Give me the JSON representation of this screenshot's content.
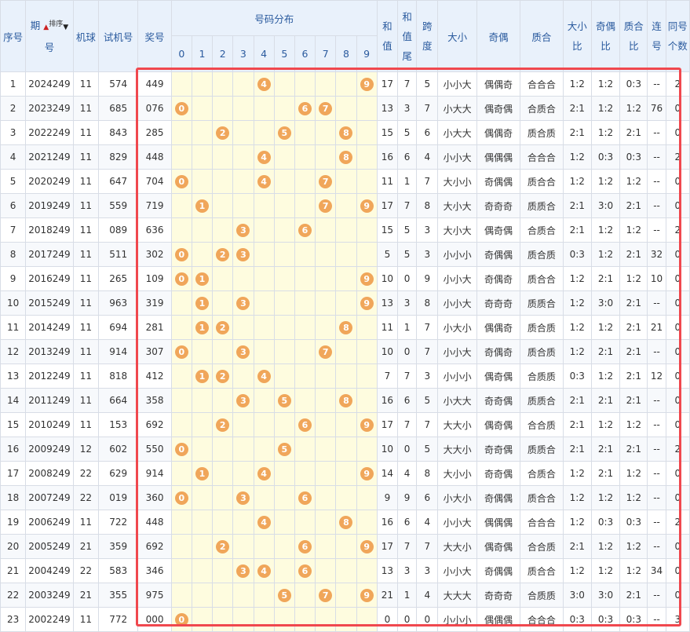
{
  "headers": {
    "seq": "序号",
    "period_a": "期",
    "period_b": "号",
    "sort_label": "排序",
    "machine": "机球",
    "trial": "试机号",
    "prize": "奖号",
    "dist": "号码分布",
    "digits": [
      "0",
      "1",
      "2",
      "3",
      "4",
      "5",
      "6",
      "7",
      "8",
      "9"
    ],
    "sum_a": "和",
    "sum_b": "值",
    "tail_a": "和",
    "tail_b": "值",
    "tail_c": "尾",
    "span_a": "跨",
    "span_b": "度",
    "size": "大小",
    "parity": "奇偶",
    "prime": "质合",
    "size_ratio_a": "大小",
    "size_ratio_b": "比",
    "parity_ratio_a": "奇偶",
    "parity_ratio_b": "比",
    "prime_ratio_a": "质合",
    "prime_ratio_b": "比",
    "consec_a": "连",
    "consec_b": "号",
    "same_a": "同号",
    "same_b": "个数"
  },
  "rows": [
    {
      "seq": "1",
      "period": "2024249",
      "machine": "11",
      "trial": "574",
      "prize": "449",
      "sum": "17",
      "tail": "7",
      "span": "5",
      "size": "小小大",
      "parity": "偶偶奇",
      "prime": "合合合",
      "size_ratio": "1:2",
      "parity_ratio": "1:2",
      "prime_ratio": "0:3",
      "consec": "--",
      "same": "2"
    },
    {
      "seq": "2",
      "period": "2023249",
      "machine": "11",
      "trial": "685",
      "prize": "076",
      "sum": "13",
      "tail": "3",
      "span": "7",
      "size": "小大大",
      "parity": "偶奇偶",
      "prime": "合质合",
      "size_ratio": "2:1",
      "parity_ratio": "1:2",
      "prime_ratio": "1:2",
      "consec": "76",
      "same": "0"
    },
    {
      "seq": "3",
      "period": "2022249",
      "machine": "11",
      "trial": "843",
      "prize": "285",
      "sum": "15",
      "tail": "5",
      "span": "6",
      "size": "小大大",
      "parity": "偶偶奇",
      "prime": "质合质",
      "size_ratio": "2:1",
      "parity_ratio": "1:2",
      "prime_ratio": "2:1",
      "consec": "--",
      "same": "0"
    },
    {
      "seq": "4",
      "period": "2021249",
      "machine": "11",
      "trial": "829",
      "prize": "448",
      "sum": "16",
      "tail": "6",
      "span": "4",
      "size": "小小大",
      "parity": "偶偶偶",
      "prime": "合合合",
      "size_ratio": "1:2",
      "parity_ratio": "0:3",
      "prime_ratio": "0:3",
      "consec": "--",
      "same": "2"
    },
    {
      "seq": "5",
      "period": "2020249",
      "machine": "11",
      "trial": "647",
      "prize": "704",
      "sum": "11",
      "tail": "1",
      "span": "7",
      "size": "大小小",
      "parity": "奇偶偶",
      "prime": "质合合",
      "size_ratio": "1:2",
      "parity_ratio": "1:2",
      "prime_ratio": "1:2",
      "consec": "--",
      "same": "0"
    },
    {
      "seq": "6",
      "period": "2019249",
      "machine": "11",
      "trial": "559",
      "prize": "719",
      "sum": "17",
      "tail": "7",
      "span": "8",
      "size": "大小大",
      "parity": "奇奇奇",
      "prime": "质质合",
      "size_ratio": "2:1",
      "parity_ratio": "3:0",
      "prime_ratio": "2:1",
      "consec": "--",
      "same": "0"
    },
    {
      "seq": "7",
      "period": "2018249",
      "machine": "11",
      "trial": "089",
      "prize": "636",
      "sum": "15",
      "tail": "5",
      "span": "3",
      "size": "大小大",
      "parity": "偶奇偶",
      "prime": "合质合",
      "size_ratio": "2:1",
      "parity_ratio": "1:2",
      "prime_ratio": "1:2",
      "consec": "--",
      "same": "2"
    },
    {
      "seq": "8",
      "period": "2017249",
      "machine": "11",
      "trial": "511",
      "prize": "302",
      "sum": "5",
      "tail": "5",
      "span": "3",
      "size": "小小小",
      "parity": "奇偶偶",
      "prime": "质合质",
      "size_ratio": "0:3",
      "parity_ratio": "1:2",
      "prime_ratio": "2:1",
      "consec": "32",
      "same": "0"
    },
    {
      "seq": "9",
      "period": "2016249",
      "machine": "11",
      "trial": "265",
      "prize": "109",
      "sum": "10",
      "tail": "0",
      "span": "9",
      "size": "小小大",
      "parity": "奇偶奇",
      "prime": "质合合",
      "size_ratio": "1:2",
      "parity_ratio": "2:1",
      "prime_ratio": "1:2",
      "consec": "10",
      "same": "0"
    },
    {
      "seq": "10",
      "period": "2015249",
      "machine": "11",
      "trial": "963",
      "prize": "319",
      "sum": "13",
      "tail": "3",
      "span": "8",
      "size": "小小大",
      "parity": "奇奇奇",
      "prime": "质质合",
      "size_ratio": "1:2",
      "parity_ratio": "3:0",
      "prime_ratio": "2:1",
      "consec": "--",
      "same": "0"
    },
    {
      "seq": "11",
      "period": "2014249",
      "machine": "11",
      "trial": "694",
      "prize": "281",
      "sum": "11",
      "tail": "1",
      "span": "7",
      "size": "小大小",
      "parity": "偶偶奇",
      "prime": "质合质",
      "size_ratio": "1:2",
      "parity_ratio": "1:2",
      "prime_ratio": "2:1",
      "consec": "21",
      "same": "0"
    },
    {
      "seq": "12",
      "period": "2013249",
      "machine": "11",
      "trial": "914",
      "prize": "307",
      "sum": "10",
      "tail": "0",
      "span": "7",
      "size": "小小大",
      "parity": "奇偶奇",
      "prime": "质合质",
      "size_ratio": "1:2",
      "parity_ratio": "2:1",
      "prime_ratio": "2:1",
      "consec": "--",
      "same": "0"
    },
    {
      "seq": "13",
      "period": "2012249",
      "machine": "11",
      "trial": "818",
      "prize": "412",
      "sum": "7",
      "tail": "7",
      "span": "3",
      "size": "小小小",
      "parity": "偶奇偶",
      "prime": "合质质",
      "size_ratio": "0:3",
      "parity_ratio": "1:2",
      "prime_ratio": "2:1",
      "consec": "12",
      "same": "0"
    },
    {
      "seq": "14",
      "period": "2011249",
      "machine": "11",
      "trial": "664",
      "prize": "358",
      "sum": "16",
      "tail": "6",
      "span": "5",
      "size": "小大大",
      "parity": "奇奇偶",
      "prime": "质质合",
      "size_ratio": "2:1",
      "parity_ratio": "2:1",
      "prime_ratio": "2:1",
      "consec": "--",
      "same": "0"
    },
    {
      "seq": "15",
      "period": "2010249",
      "machine": "11",
      "trial": "153",
      "prize": "692",
      "sum": "17",
      "tail": "7",
      "span": "7",
      "size": "大大小",
      "parity": "偶奇偶",
      "prime": "合合质",
      "size_ratio": "2:1",
      "parity_ratio": "1:2",
      "prime_ratio": "1:2",
      "consec": "--",
      "same": "0"
    },
    {
      "seq": "16",
      "period": "2009249",
      "machine": "12",
      "trial": "602",
      "prize": "550",
      "sum": "10",
      "tail": "0",
      "span": "5",
      "size": "大大小",
      "parity": "奇奇偶",
      "prime": "质质合",
      "size_ratio": "2:1",
      "parity_ratio": "2:1",
      "prime_ratio": "2:1",
      "consec": "--",
      "same": "2"
    },
    {
      "seq": "17",
      "period": "2008249",
      "machine": "22",
      "trial": "629",
      "prize": "914",
      "sum": "14",
      "tail": "4",
      "span": "8",
      "size": "大小小",
      "parity": "奇奇偶",
      "prime": "合质合",
      "size_ratio": "1:2",
      "parity_ratio": "2:1",
      "prime_ratio": "1:2",
      "consec": "--",
      "same": "0"
    },
    {
      "seq": "18",
      "period": "2007249",
      "machine": "22",
      "trial": "019",
      "prize": "360",
      "sum": "9",
      "tail": "9",
      "span": "6",
      "size": "小大小",
      "parity": "奇偶偶",
      "prime": "质合合",
      "size_ratio": "1:2",
      "parity_ratio": "1:2",
      "prime_ratio": "1:2",
      "consec": "--",
      "same": "0"
    },
    {
      "seq": "19",
      "period": "2006249",
      "machine": "11",
      "trial": "722",
      "prize": "448",
      "sum": "16",
      "tail": "6",
      "span": "4",
      "size": "小小大",
      "parity": "偶偶偶",
      "prime": "合合合",
      "size_ratio": "1:2",
      "parity_ratio": "0:3",
      "prime_ratio": "0:3",
      "consec": "--",
      "same": "2"
    },
    {
      "seq": "20",
      "period": "2005249",
      "machine": "21",
      "trial": "359",
      "prize": "692",
      "sum": "17",
      "tail": "7",
      "span": "7",
      "size": "大大小",
      "parity": "偶奇偶",
      "prime": "合合质",
      "size_ratio": "2:1",
      "parity_ratio": "1:2",
      "prime_ratio": "1:2",
      "consec": "--",
      "same": "0"
    },
    {
      "seq": "21",
      "period": "2004249",
      "machine": "22",
      "trial": "583",
      "prize": "346",
      "sum": "13",
      "tail": "3",
      "span": "3",
      "size": "小小大",
      "parity": "奇偶偶",
      "prime": "质合合",
      "size_ratio": "1:2",
      "parity_ratio": "1:2",
      "prime_ratio": "1:2",
      "consec": "34",
      "same": "0"
    },
    {
      "seq": "22",
      "period": "2003249",
      "machine": "21",
      "trial": "355",
      "prize": "975",
      "sum": "21",
      "tail": "1",
      "span": "4",
      "size": "大大大",
      "parity": "奇奇奇",
      "prime": "合质质",
      "size_ratio": "3:0",
      "parity_ratio": "3:0",
      "prime_ratio": "2:1",
      "consec": "--",
      "same": "0"
    },
    {
      "seq": "23",
      "period": "2002249",
      "machine": "11",
      "trial": "772",
      "prize": "000",
      "sum": "0",
      "tail": "0",
      "span": "0",
      "size": "小小小",
      "parity": "偶偶偶",
      "prime": "合合合",
      "size_ratio": "0:3",
      "parity_ratio": "0:3",
      "prime_ratio": "0:3",
      "consec": "--",
      "same": "3"
    }
  ]
}
